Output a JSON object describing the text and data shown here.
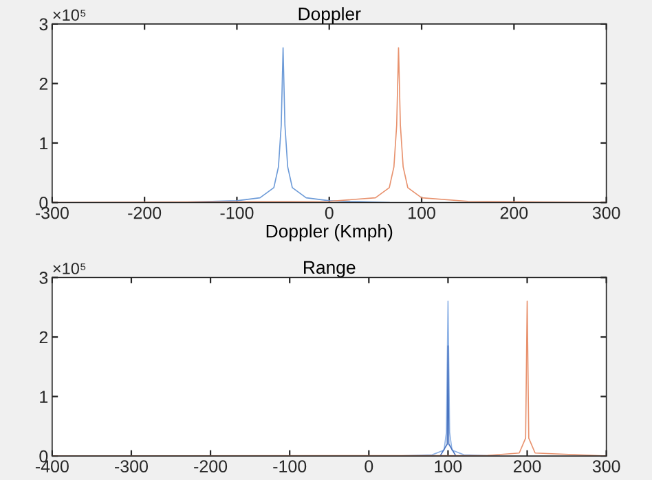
{
  "chart_data": [
    {
      "type": "line",
      "title": "Doppler",
      "xlabel": "Doppler (Kmph)",
      "annotations": [
        "×10⁵"
      ],
      "xlim": [
        -300,
        300
      ],
      "xticks": [
        -300,
        -200,
        -100,
        0,
        100,
        200,
        300
      ],
      "ylim": [
        0,
        3
      ],
      "yticks": [
        0,
        1,
        2,
        3
      ],
      "grid": false,
      "marker": "none",
      "line_style": "solid",
      "series": [
        {
          "color": "#6d9bd8",
          "x": [
            -175,
            -100,
            -75,
            -60,
            -55,
            -52,
            -50,
            -48,
            -45,
            -40,
            -25,
            0,
            65
          ],
          "values": [
            0,
            0.03,
            0.08,
            0.25,
            0.6,
            1.3,
            2.6,
            1.3,
            0.6,
            0.25,
            0.08,
            0.03,
            0
          ]
        },
        {
          "color": "#e8926e",
          "x": [
            -300,
            0,
            50,
            65,
            70,
            73,
            75,
            77,
            80,
            85,
            100,
            150,
            300
          ],
          "values": [
            0,
            0.02,
            0.08,
            0.25,
            0.6,
            1.3,
            2.6,
            1.3,
            0.6,
            0.25,
            0.08,
            0.02,
            0
          ]
        }
      ]
    },
    {
      "type": "line",
      "title": "Range",
      "annotations": [
        "×10⁵"
      ],
      "xlim": [
        -400,
        300
      ],
      "xticks": [
        -400,
        -300,
        -200,
        -100,
        0,
        100,
        200,
        300
      ],
      "ylim": [
        0,
        3
      ],
      "yticks": [
        0,
        1,
        2,
        3
      ],
      "grid": false,
      "marker": "none",
      "line_style": "solid",
      "series": [
        {
          "color": "#8fb3e6",
          "x": [
            35,
            80,
            95,
            98,
            100,
            102,
            105,
            120,
            165
          ],
          "values": [
            0,
            0.02,
            0.1,
            0.4,
            2.6,
            0.4,
            0.1,
            0.02,
            0
          ]
        },
        {
          "color": "#4a74c0",
          "x": [
            90,
            99,
            100,
            101,
            110
          ],
          "values": [
            0,
            0.2,
            1.85,
            0.2,
            0
          ]
        },
        {
          "color": "#e8926e",
          "x": [
            -400,
            150,
            190,
            198,
            200,
            202,
            210,
            300
          ],
          "values": [
            0,
            0.01,
            0.05,
            0.3,
            2.6,
            0.3,
            0.05,
            0
          ]
        }
      ]
    }
  ]
}
